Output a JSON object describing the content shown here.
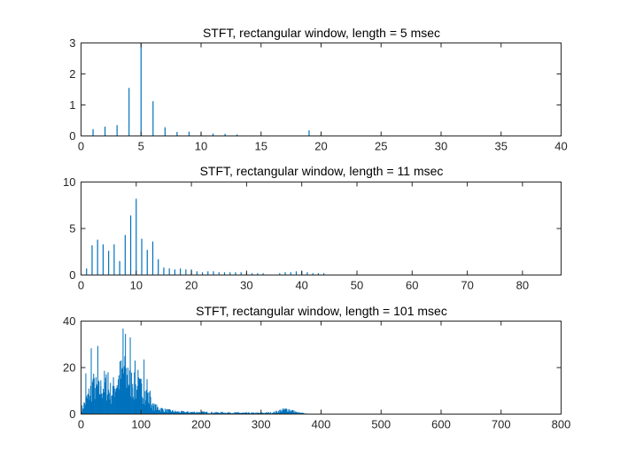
{
  "colors": {
    "series": "#0072BD",
    "axis": "#262626"
  },
  "chart_data": [
    {
      "type": "bar",
      "title": "STFT, rectangular window, length = 5 msec",
      "xlabel": "",
      "ylabel": "",
      "xlim": [
        0,
        40
      ],
      "ylim": [
        0,
        3
      ],
      "xticks": [
        0,
        5,
        10,
        15,
        20,
        25,
        30,
        35,
        40
      ],
      "yticks": [
        0,
        1,
        2,
        3
      ],
      "grid": false,
      "x": [
        1,
        2,
        3,
        4,
        5,
        6,
        7,
        8,
        9,
        10,
        11,
        12,
        13,
        19
      ],
      "values": [
        0.22,
        0.3,
        0.35,
        1.55,
        3.0,
        1.12,
        0.28,
        0.13,
        0.14,
        0.1,
        0.08,
        0.07,
        0.05,
        0.18
      ]
    },
    {
      "type": "bar",
      "title": "STFT, rectangular window, length = 11 msec",
      "xlabel": "",
      "ylabel": "",
      "xlim": [
        0,
        87
      ],
      "ylim": [
        0,
        10
      ],
      "xticks": [
        0,
        10,
        20,
        30,
        40,
        50,
        60,
        70,
        80
      ],
      "yticks": [
        0,
        5,
        10
      ],
      "grid": false,
      "x": [
        1,
        2,
        3,
        4,
        5,
        6,
        7,
        8,
        9,
        10,
        11,
        12,
        13,
        14,
        15,
        16,
        17,
        18,
        19,
        20,
        21,
        22,
        23,
        24,
        25,
        26,
        27,
        28,
        29,
        30,
        31,
        32,
        33,
        36,
        37,
        38,
        39,
        40,
        41,
        42,
        43,
        44
      ],
      "values": [
        0.7,
        3.2,
        3.8,
        3.3,
        2.6,
        3.3,
        1.5,
        4.3,
        6.4,
        8.2,
        3.9,
        2.7,
        3.6,
        1.7,
        0.8,
        0.7,
        0.6,
        0.7,
        0.6,
        0.6,
        0.4,
        0.3,
        0.4,
        0.4,
        0.3,
        0.3,
        0.3,
        0.3,
        0.3,
        0.3,
        0.2,
        0.2,
        0.2,
        0.2,
        0.3,
        0.3,
        0.4,
        0.4,
        0.3,
        0.2,
        0.2,
        0.2
      ]
    },
    {
      "type": "bar",
      "title": "STFT, rectangular window, length = 101 msec",
      "xlabel": "",
      "ylabel": "",
      "xlim": [
        0,
        800
      ],
      "ylim": [
        0,
        40
      ],
      "xticks": [
        0,
        100,
        200,
        300,
        400,
        500,
        600,
        700,
        800
      ],
      "yticks": [
        0,
        20,
        40
      ],
      "grid": false,
      "envelope": {
        "x": [
          0,
          10,
          20,
          30,
          40,
          50,
          60,
          70,
          80,
          90,
          100,
          110,
          120,
          140,
          160,
          180,
          200,
          220,
          240,
          260,
          280,
          300,
          320,
          335,
          345,
          360,
          380
        ],
        "values": [
          2,
          8,
          15,
          12,
          16,
          11,
          17,
          22,
          18,
          14,
          13,
          10,
          4,
          2,
          1.2,
          1,
          1,
          0.8,
          0.8,
          0.7,
          0.6,
          0.6,
          0.8,
          2,
          2.5,
          0.8,
          0.1
        ]
      },
      "peaks": {
        "x": [
          8,
          12,
          17,
          20,
          28,
          33,
          38,
          45,
          55,
          62,
          67,
          70,
          74,
          78,
          82,
          86,
          90,
          95,
          100,
          105,
          110,
          115
        ],
        "values": [
          17.5,
          7,
          28.3,
          15,
          29.3,
          12,
          8,
          18,
          12,
          14,
          10,
          36.8,
          34.5,
          20,
          33,
          13,
          23,
          19,
          12,
          23.5,
          15,
          10
        ]
      }
    }
  ]
}
